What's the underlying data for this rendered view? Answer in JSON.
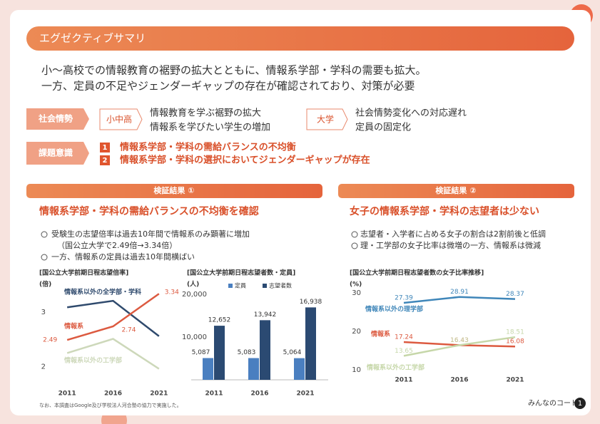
{
  "header": {
    "title": "エグゼクティブサマリ"
  },
  "summary": [
    "小〜高校での情報教育の裾野の拡大とともに、情報系学部・学科の需要も拡大。",
    "一方、定員の不足やジェンダーギャップの存在が確認されており、対策が必要"
  ],
  "context": {
    "label": "社会情勢",
    "groups": [
      {
        "tag": "小中高",
        "lines": [
          "情報教育を学ぶ裾野の拡大",
          "情報系を学びたい学生の増加"
        ]
      },
      {
        "tag": "大学",
        "lines": [
          "社会情勢変化への対応遅れ",
          "定員の固定化"
        ]
      }
    ]
  },
  "issues": {
    "label": "課題意識",
    "items": [
      {
        "number": "1",
        "text": "情報系学部・学科の需給バランスの不均衡"
      },
      {
        "number": "2",
        "text": "情報系学部・学科の選択においてジェンダーギャップが存在"
      }
    ]
  },
  "findings": [
    {
      "badge": "検証結果 ①",
      "heading": "情報系学部・学科の需給バランスの不均衡を確認",
      "bullets": [
        "受験生の志望倍率は過去10年間で情報系のみ顕著に増加",
        "（国公立大学で2.49倍→3.34倍）",
        "一方、情報系の定員は過去10年間横ばい"
      ],
      "charts": [
        {
          "type": "line",
          "title": "[国公立大学前期日程志望倍率]",
          "unit": "(倍)",
          "categories": [
            "2011",
            "2016",
            "2021"
          ],
          "ylim": [
            1.6,
            3.5
          ],
          "yticks": [
            2,
            3
          ],
          "series": [
            {
              "name": "情報系以外の全学部・学科",
              "color": "#2f4a6d",
              "values": [
                3.09,
                3.21,
                2.56
              ]
            },
            {
              "name": "情報系",
              "color": "#dc5a40",
              "values": [
                2.49,
                2.74,
                3.34
              ],
              "show_values": true
            },
            {
              "name": "情報系以外の工学部",
              "color": "#cdd8ba",
              "values": [
                2.25,
                2.51,
                1.96
              ]
            }
          ]
        },
        {
          "type": "bar",
          "title": "[国公立大学前期日程志望者数・定員]",
          "unit": "(人)",
          "categories": [
            "2011",
            "2016",
            "2021"
          ],
          "ylim": [
            0,
            20000
          ],
          "yticks": [
            {
              "value": 20000,
              "label": "20,000"
            },
            {
              "value": 10000,
              "label": "10,000"
            }
          ],
          "series": [
            {
              "name": "定員",
              "color": "#4a7fc0",
              "values": [
                5087,
                5083,
                5064
              ],
              "value_labels": [
                "5,087",
                "5,083",
                "5,064"
              ]
            },
            {
              "name": "志望者数",
              "color": "#2b4a72",
              "values": [
                12652,
                13942,
                16938
              ],
              "value_labels": [
                "12,652",
                "13,942",
                "16,938"
              ]
            }
          ]
        }
      ]
    },
    {
      "badge": "検証結果 ②",
      "heading": "女子の情報系学部・学科の志望者は少ない",
      "bullets": [
        "志望者・入学者に占める女子の割合は2割前後と低調",
        "理・工学部の女子比率は微増の一方、情報系は微減"
      ],
      "charts": [
        {
          "type": "line",
          "title": "[国公立大学前期日程志望者数の女子比率推移]",
          "unit": "(%)",
          "categories": [
            "2011",
            "2016",
            "2021"
          ],
          "ylim": [
            8,
            32
          ],
          "yticks": [
            10,
            20,
            30
          ],
          "series": [
            {
              "name": "情報系以外の理学部",
              "color": "#3f86b9",
              "values": [
                27.39,
                28.91,
                28.37
              ],
              "show_values": true
            },
            {
              "name": "情報系",
              "color": "#dc5a40",
              "values": [
                17.24,
                16.43,
                16.08
              ],
              "show_values": true
            },
            {
              "name": "情報系以外の工学部",
              "color": "#c6d7a9",
              "values": [
                13.65,
                16.43,
                18.51
              ],
              "show_values": true
            }
          ]
        }
      ]
    }
  ],
  "note": "なお、本調査はGoogle及び学校法人河合塾の協力で実施した。",
  "footer": {
    "brand": "みんなのコード",
    "page": "1"
  }
}
